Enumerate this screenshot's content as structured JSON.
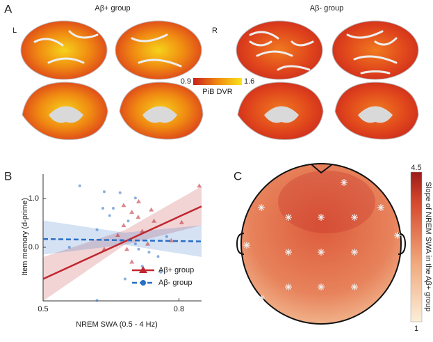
{
  "panel_a": {
    "label": "A",
    "groups": [
      "Aβ+ group",
      "Aβ- group"
    ],
    "hemispheres": [
      "L",
      "R"
    ],
    "colorbar": {
      "min": "0.9",
      "max": "1.6",
      "title": "PiB DVR"
    }
  },
  "chart_data": {
    "type": "scatter",
    "label": "B",
    "xlabel": "NREM SWA (0.5 - 4 Hz)",
    "ylabel": "Item memory (d-prime)",
    "xlim": [
      0.5,
      0.85
    ],
    "ylim": [
      -1.1,
      1.5
    ],
    "xticks": [
      0.5,
      0.8
    ],
    "yticks": [
      {
        "value": 0,
        "label": "0.0"
      },
      {
        "value": 1,
        "label": "1.0"
      }
    ],
    "legend": "lower right",
    "series": [
      {
        "name": "Aβ+ group",
        "color": "#c0262d",
        "marker": "triangle",
        "linestyle": "solid",
        "x": [
          0.845,
          0.711,
          0.739,
          0.678,
          0.696,
          0.665,
          0.719,
          0.685,
          0.635,
          0.696,
          0.806,
          0.783,
          0.731,
          0.745,
          0.71,
          0.678
        ],
        "values": [
          1.26,
          0.94,
          0.77,
          0.86,
          0.72,
          0.25,
          0.33,
          -0.04,
          -0.04,
          -0.3,
          0.51,
          0.14,
          0.07,
          0.54,
          0.62,
          0.45
        ],
        "fit": {
          "x": [
            0.5,
            0.85
          ],
          "y": [
            -0.65,
            0.84
          ]
        },
        "ci": {
          "x": [
            0.5,
            0.68,
            0.85
          ],
          "lower": [
            -1.1,
            0.05,
            0.45
          ],
          "upper": [
            -0.2,
            0.35,
            1.25
          ]
        }
      },
      {
        "name": "Aβ- group",
        "color": "#2a6ec6",
        "marker": "circle",
        "linestyle": "dashed",
        "x": [
          0.581,
          0.635,
          0.67,
          0.704,
          0.632,
          0.647,
          0.655,
          0.558,
          0.619,
          0.673,
          0.704,
          0.711,
          0.734,
          0.754,
          0.719,
          0.76,
          0.681,
          0.619,
          0.773,
          0.688
        ],
        "values": [
          1.26,
          1.14,
          1.12,
          1.01,
          0.8,
          0.65,
          0.8,
          0.0,
          0.36,
          0.14,
          0.07,
          -0.04,
          -0.1,
          -0.19,
          -0.39,
          -0.51,
          -0.65,
          -1.09,
          0.22,
          0.54
        ],
        "fit": {
          "x": [
            0.5,
            0.85
          ],
          "y": [
            0.17,
            0.12
          ]
        },
        "ci": {
          "x": [
            0.5,
            0.68,
            0.85
          ],
          "lower": [
            -0.15,
            0.05,
            -0.2
          ],
          "upper": [
            0.55,
            0.3,
            0.45
          ]
        }
      }
    ]
  },
  "panel_c": {
    "label": "C",
    "colorbar": {
      "max": "4.5",
      "min": "1",
      "title": "Slope of NREM SWA in the Aβ+ group"
    }
  }
}
